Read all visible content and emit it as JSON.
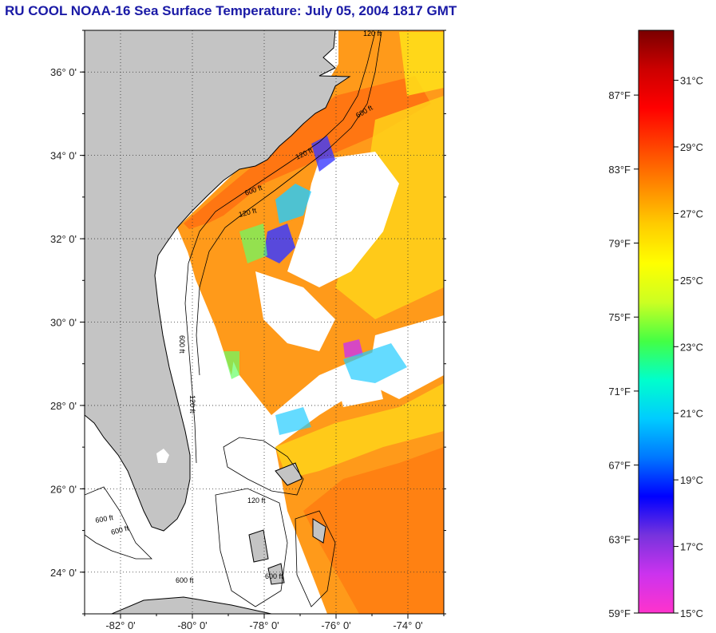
{
  "title": "RU COOL  NOAA-16  Sea Surface Temperature:  July 05, 2004 1817 GMT",
  "map": {
    "lon_range": [
      -83,
      -73
    ],
    "lat_range": [
      23,
      37
    ],
    "lat_ticks": [
      "36° 0'",
      "34° 0'",
      "32° 0'",
      "30° 0'",
      "28° 0'",
      "26° 0'",
      "24° 0'"
    ],
    "lon_ticks": [
      "-82° 0'",
      "-80° 0'",
      "-78° 0'",
      "-76° 0'",
      "-74° 0'"
    ],
    "grid": "dotted",
    "contour_labels": [
      "120 ft",
      "600 ft",
      "120 ft",
      "600 ft",
      "120 ft",
      "600 ft",
      "120 ft",
      "600 ft",
      "600 ft",
      "600 ft",
      "120 ft",
      "600 ft"
    ],
    "colors": {
      "land": "#c4c4c4",
      "cloud": "#ffffff",
      "contour": "#000000"
    }
  },
  "colorbar": {
    "fahrenheit_labels": [
      "87°F",
      "83°F",
      "79°F",
      "75°F",
      "71°F",
      "67°F",
      "63°F",
      "59°F"
    ],
    "celsius_labels": [
      "31°C",
      "29°C",
      "27°C",
      "25°C",
      "23°C",
      "21°C",
      "19°C",
      "17°C",
      "15°C"
    ],
    "range_c": [
      15,
      32.5
    ],
    "stops": [
      "#ff33cc",
      "#cc33ee",
      "#7733dd",
      "#0000ff",
      "#0077ff",
      "#00ccff",
      "#00ffcc",
      "#44ff44",
      "#ccff22",
      "#ffff00",
      "#ffcc00",
      "#ff8800",
      "#ff4400",
      "#ff0000",
      "#cc0000",
      "#7a0000"
    ]
  }
}
